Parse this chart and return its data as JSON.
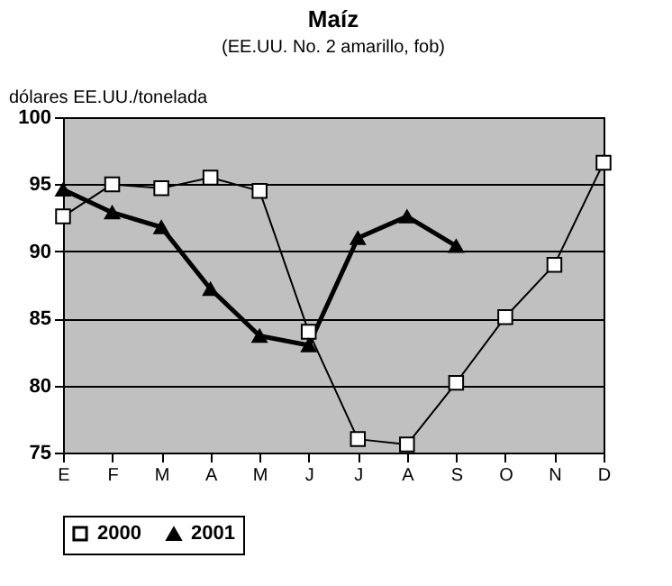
{
  "chart_data": {
    "type": "line",
    "title": "Maíz",
    "subtitle": "(EE.UU. No. 2 amarillo, fob)",
    "ylabel": "dólares EE.UU./tonelada",
    "categories": [
      "E",
      "F",
      "M",
      "A",
      "M",
      "J",
      "J",
      "A",
      "S",
      "O",
      "N",
      "D"
    ],
    "series": [
      {
        "name": "2000",
        "color": "#000000",
        "marker": "square",
        "values": [
          92.6,
          95.0,
          94.7,
          95.5,
          94.5,
          84.0,
          76.0,
          75.6,
          80.2,
          85.1,
          89.0,
          96.6
        ]
      },
      {
        "name": "2001",
        "color": "#000000",
        "marker": "triangle",
        "values": [
          94.6,
          92.9,
          91.8,
          87.2,
          83.7,
          83.0,
          91.0,
          92.6,
          90.4,
          null,
          null,
          null
        ]
      }
    ],
    "ylim": [
      75,
      100
    ],
    "yticks": [
      75,
      80,
      85,
      90,
      95,
      100
    ],
    "grid": "y",
    "legend": "bottom"
  }
}
